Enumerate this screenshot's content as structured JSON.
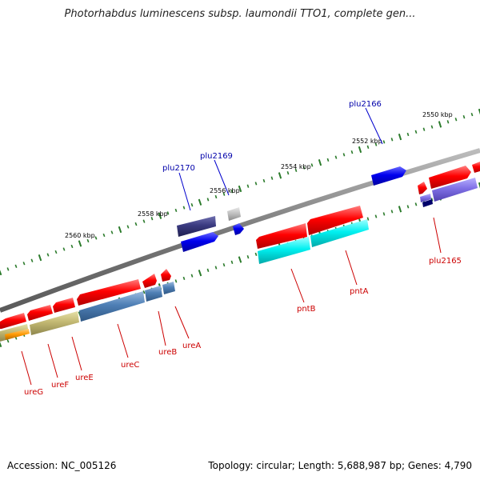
{
  "title": "Photorhabdus luminescens subsp. laumondii TTO1, complete gen...",
  "footer": {
    "accession": "Accession: NC_005126",
    "summary": "Topology: circular; Length: 5,688,987 bp; Genes: 4,790"
  },
  "colors": {
    "backbone": "#888888",
    "forward_label": "#0000aa",
    "reverse_label": "#cc0000",
    "tick": "#2a7a2a"
  },
  "kbp_ticks": [
    "2550 kbp",
    "2552 kbp",
    "2554 kbp",
    "2556 kbp",
    "2558 kbp",
    "2560 kbp"
  ],
  "gene_labels": {
    "forward": [
      "plu2166",
      "plu2169",
      "plu2170"
    ],
    "reverse": [
      "plu2165",
      "pntA",
      "pntB",
      "ureA",
      "ureB",
      "ureC",
      "ureE",
      "ureF",
      "ureG"
    ]
  }
}
